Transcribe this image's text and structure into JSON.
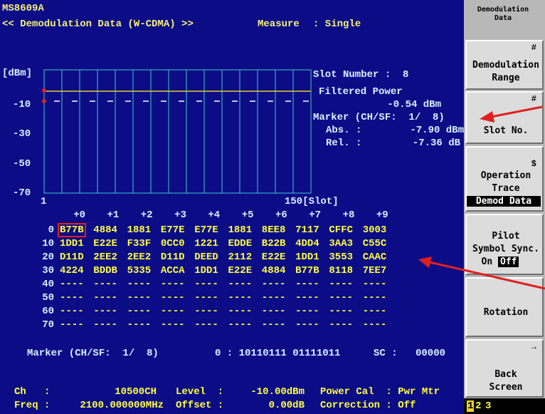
{
  "header": {
    "model": "MS8609A",
    "title": "<< Demodulation Data (W-CDMA) >>",
    "measure_label": "Measure",
    "measure_value": ": Single"
  },
  "graph": {
    "unit": "[dBm]",
    "y_labels": [
      "-10",
      "-30",
      "-50",
      "-70"
    ],
    "x_start": "1",
    "x_end": "150[Slot]"
  },
  "info": {
    "slot_number": "Slot Number :  8",
    "filtered_power_label": "Filtered Power",
    "filtered_power": "-0.54 dBm",
    "marker": "Marker (CH/SF:  1/  8)",
    "abs_label": "Abs. :",
    "abs_value": "-7.90 dBm",
    "rel_label": "Rel. :",
    "rel_value": "-7.36 dB"
  },
  "table": {
    "columns": [
      "+0",
      "+1",
      "+2",
      "+3",
      "+4",
      "+5",
      "+6",
      "+7",
      "+8",
      "+9"
    ],
    "rows": [
      {
        "label": "0",
        "cells": [
          "B77B",
          "4884",
          "1881",
          "E77E",
          "E77E",
          "1881",
          "8EE8",
          "7117",
          "CFFC",
          "3003"
        ]
      },
      {
        "label": "10",
        "cells": [
          "1DD1",
          "E22E",
          "F33F",
          "0CC0",
          "1221",
          "EDDE",
          "B22B",
          "4DD4",
          "3AA3",
          "C55C"
        ]
      },
      {
        "label": "20",
        "cells": [
          "D11D",
          "2EE2",
          "2EE2",
          "D11D",
          "DEED",
          "2112",
          "E22E",
          "1DD1",
          "3553",
          "CAAC"
        ]
      },
      {
        "label": "30",
        "cells": [
          "4224",
          "BDDB",
          "5335",
          "ACCA",
          "1DD1",
          "E22E",
          "4884",
          "B77B",
          "8118",
          "7EE7"
        ]
      },
      {
        "label": "40",
        "cells": [
          "----",
          "----",
          "----",
          "----",
          "----",
          "----",
          "----",
          "----",
          "----",
          "----"
        ]
      },
      {
        "label": "50",
        "cells": [
          "----",
          "----",
          "----",
          "----",
          "----",
          "----",
          "----",
          "----",
          "----",
          "----"
        ]
      },
      {
        "label": "60",
        "cells": [
          "----",
          "----",
          "----",
          "----",
          "----",
          "----",
          "----",
          "----",
          "----",
          "----"
        ]
      },
      {
        "label": "70",
        "cells": [
          "----",
          "----",
          "----",
          "----",
          "----",
          "----",
          "----",
          "----",
          "----",
          "----"
        ]
      }
    ]
  },
  "marker_line": {
    "label": "Marker (CH/SF:  1/  8)",
    "value": "0 : 10110111 01111011",
    "sc_label": "SC :",
    "sc_value": "00000"
  },
  "status": {
    "ch_label": "Ch   :",
    "ch_value": "10500CH",
    "level_label": "Level  :",
    "level_value": "-10.00dBm",
    "power_cal": "Power Cal  : Pwr Mtr",
    "freq_label": "Freq :",
    "freq_value": "2100.000000MHz",
    "offset_label": "Offset :",
    "offset_value": "0.00dB",
    "correction": "Correction : Off"
  },
  "softkeys": {
    "title": [
      "Demodulation",
      "Data"
    ],
    "demod_range": {
      "symbol": "#",
      "lines": [
        "Demodulation",
        "Range"
      ]
    },
    "slot_no": {
      "symbol": "#",
      "label": "Slot No."
    },
    "operation_trace": {
      "symbol": "$",
      "lines": [
        "Operation",
        "Trace"
      ],
      "selected": "Demod Data"
    },
    "pilot": {
      "lines": [
        "Pilot",
        "Symbol Sync."
      ],
      "on": "On",
      "off": "Off"
    },
    "rotation": {
      "label": "Rotation"
    },
    "back": {
      "symbol": "→",
      "lines": [
        "Back",
        "Screen"
      ]
    },
    "pages": [
      "1",
      "2",
      "3"
    ]
  }
}
